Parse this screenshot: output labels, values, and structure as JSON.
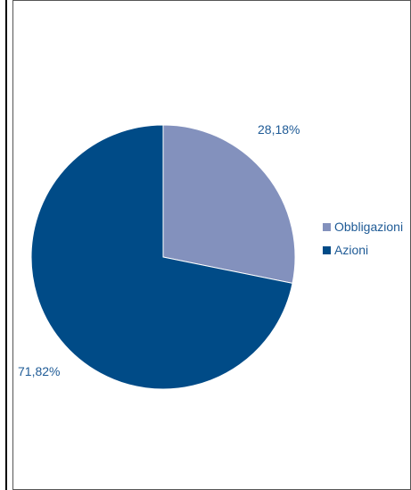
{
  "chart_data": {
    "type": "pie",
    "slices": [
      {
        "name": "Obbligazioni",
        "value": 28.18,
        "label": "28,18%",
        "color": "#8391bd"
      },
      {
        "name": "Azioni",
        "value": 71.82,
        "label": "71,82%",
        "color": "#004b87"
      }
    ],
    "legend": {
      "position": "right",
      "items": [
        {
          "label": "Obbligazioni",
          "color": "#8391bd"
        },
        {
          "label": "Azioni",
          "color": "#004b87"
        }
      ]
    },
    "start_angle": "12 o'clock, clockwise"
  }
}
